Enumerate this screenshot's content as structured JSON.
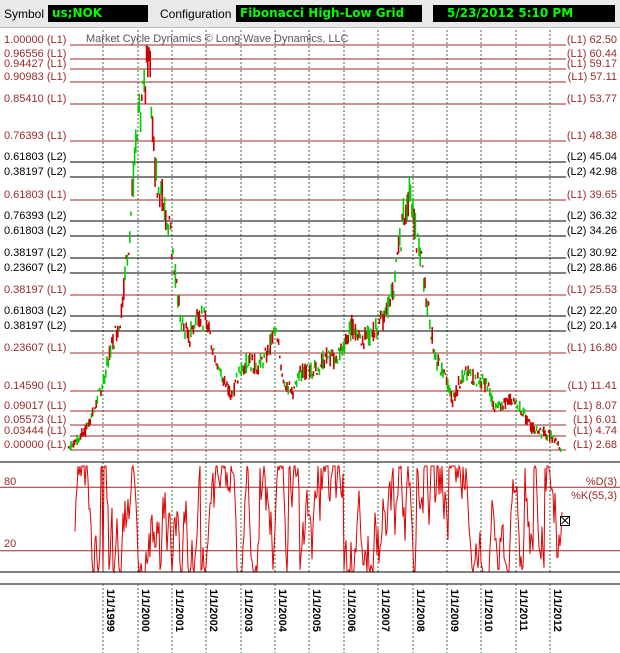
{
  "toolbar": {
    "symbol_label": "Symbol",
    "symbol_value": "us;NOK",
    "config_label": "Configuration",
    "config_value": "Fibonacci High-Low Grid",
    "timestamp": "5/23/2012 5:10 PM"
  },
  "colors": {
    "field_bg": "#000000",
    "field_text": "#00ff00",
    "l1_line": "#9b2a2a",
    "l2_line": "#000000",
    "up_bar": "#00cc00",
    "down_bar": "#cc0000",
    "oscillator": "#e00000"
  },
  "chart_data": [
    {
      "type": "line",
      "title": "Market Cycle Dynamics © Long Wave Dynamics, LLC",
      "ylim": [
        2.68,
        62.5
      ],
      "grid": true,
      "levels": [
        {
          "left": "1.00000 (L1)",
          "right": "(L1) 62.50",
          "value": 62.5,
          "group": "L1"
        },
        {
          "left": "0.96556 (L1)",
          "right": "(L1) 60.44",
          "value": 60.44,
          "group": "L1"
        },
        {
          "left": "0.94427 (L1)",
          "right": "(L1) 59.17",
          "value": 59.17,
          "group": "L1"
        },
        {
          "left": "0.90983 (L1)",
          "right": "(L1) 57.11",
          "value": 57.11,
          "group": "L1"
        },
        {
          "left": "0.85410 (L1)",
          "right": "(L1) 53.77",
          "value": 53.77,
          "group": "L1"
        },
        {
          "left": "0.76393 (L1)",
          "right": "(L1) 48.38",
          "value": 48.38,
          "group": "L1"
        },
        {
          "left": "0.61803 (L2)",
          "right": "(L2) 45.04",
          "value": 45.04,
          "group": "L2"
        },
        {
          "left": "0.38197 (L2)",
          "right": "(L2) 42.98",
          "value": 42.98,
          "group": "L2"
        },
        {
          "left": "0.61803 (L1)",
          "right": "(L1) 39.65",
          "value": 39.65,
          "group": "L1"
        },
        {
          "left": "0.76393 (L2)",
          "right": "(L2) 36.32",
          "value": 36.32,
          "group": "L2"
        },
        {
          "left": "0.61803 (L2)",
          "right": "(L2) 34.26",
          "value": 34.26,
          "group": "L2"
        },
        {
          "left": "0.38197 (L2)",
          "right": "(L2) 30.92",
          "value": 30.92,
          "group": "L2"
        },
        {
          "left": "0.23607 (L2)",
          "right": "(L2) 28.86",
          "value": 28.86,
          "group": "L2"
        },
        {
          "left": "0.38197 (L1)",
          "right": "(L1) 25.53",
          "value": 25.53,
          "group": "L1"
        },
        {
          "left": "0.61803 (L2)",
          "right": "(L2) 22.20",
          "value": 22.2,
          "group": "L2"
        },
        {
          "left": "0.38197 (L2)",
          "right": "(L2) 20.14",
          "value": 20.14,
          "group": "L2"
        },
        {
          "left": "0.23607 (L1)",
          "right": "(L1) 16.80",
          "value": 16.8,
          "group": "L1"
        },
        {
          "left": "0.14590 (L1)",
          "right": "(L1) 11.41",
          "value": 11.41,
          "group": "L1"
        },
        {
          "left": "0.09017 (L1)",
          "right": "(L1) 8.07",
          "value": 8.07,
          "group": "L1"
        },
        {
          "left": "0.05573 (L1)",
          "right": "(L1) 6.01",
          "value": 6.01,
          "group": "L1"
        },
        {
          "left": "0.03444 (L1)",
          "right": "(L1) 4.74",
          "value": 4.74,
          "group": "L1"
        },
        {
          "left": "0.00000 (L1)",
          "right": "(L1) 2.68",
          "value": 2.68,
          "group": "L1"
        }
      ],
      "x_years": [
        "1/1/1999",
        "1/1/2000",
        "1/1/2001",
        "1/1/2002",
        "1/1/2003",
        "1/1/2004",
        "1/1/2005",
        "1/1/2006",
        "1/1/2007",
        "1/1/2008",
        "1/1/2009",
        "1/1/2010",
        "1/1/2011",
        "1/1/2012"
      ],
      "price_path": [
        [
          "1998-01",
          3.2
        ],
        [
          "1998-07",
          5.5
        ],
        [
          "1998-10",
          8.5
        ],
        [
          "1999-01",
          13.0
        ],
        [
          "1999-04",
          18.0
        ],
        [
          "1999-07",
          22.0
        ],
        [
          "1999-10",
          34.0
        ],
        [
          "2000-01",
          50.0
        ],
        [
          "2000-04",
          58.0
        ],
        [
          "2000-05",
          62.5
        ],
        [
          "2000-07",
          44.0
        ],
        [
          "2000-10",
          40.0
        ],
        [
          "2001-01",
          33.0
        ],
        [
          "2001-04",
          22.0
        ],
        [
          "2001-07",
          19.0
        ],
        [
          "2001-10",
          23.0
        ],
        [
          "2002-01",
          21.5
        ],
        [
          "2002-04",
          17.0
        ],
        [
          "2002-07",
          13.0
        ],
        [
          "2002-10",
          11.0
        ],
        [
          "2003-01",
          14.5
        ],
        [
          "2003-04",
          16.0
        ],
        [
          "2003-07",
          15.0
        ],
        [
          "2003-10",
          16.5
        ],
        [
          "2004-01",
          20.5
        ],
        [
          "2004-04",
          13.5
        ],
        [
          "2004-07",
          11.0
        ],
        [
          "2004-10",
          14.0
        ],
        [
          "2005-01",
          14.5
        ],
        [
          "2005-04",
          15.0
        ],
        [
          "2005-07",
          16.5
        ],
        [
          "2005-10",
          16.0
        ],
        [
          "2006-01",
          18.0
        ],
        [
          "2006-04",
          21.0
        ],
        [
          "2006-07",
          19.0
        ],
        [
          "2006-10",
          19.5
        ],
        [
          "2007-01",
          21.0
        ],
        [
          "2007-04",
          23.0
        ],
        [
          "2007-07",
          28.0
        ],
        [
          "2007-10",
          38.0
        ],
        [
          "2007-12",
          40.5
        ],
        [
          "2008-03",
          33.0
        ],
        [
          "2008-06",
          25.0
        ],
        [
          "2008-09",
          16.0
        ],
        [
          "2008-12",
          14.0
        ],
        [
          "2009-03",
          10.0
        ],
        [
          "2009-06",
          13.5
        ],
        [
          "2009-09",
          14.0
        ],
        [
          "2009-12",
          13.0
        ],
        [
          "2010-03",
          12.5
        ],
        [
          "2010-06",
          8.5
        ],
        [
          "2010-09",
          9.5
        ],
        [
          "2010-12",
          10.5
        ],
        [
          "2011-03",
          8.5
        ],
        [
          "2011-06",
          6.0
        ],
        [
          "2011-09",
          5.5
        ],
        [
          "2011-12",
          5.0
        ],
        [
          "2012-03",
          4.5
        ],
        [
          "2012-05",
          2.68
        ]
      ]
    },
    {
      "type": "line",
      "legend": [
        "%D(3)",
        "%K(55,3)"
      ],
      "ylim": [
        0,
        100
      ],
      "y_ticks": [
        "80",
        "20"
      ],
      "y_tick_values": [
        80,
        20
      ]
    }
  ]
}
